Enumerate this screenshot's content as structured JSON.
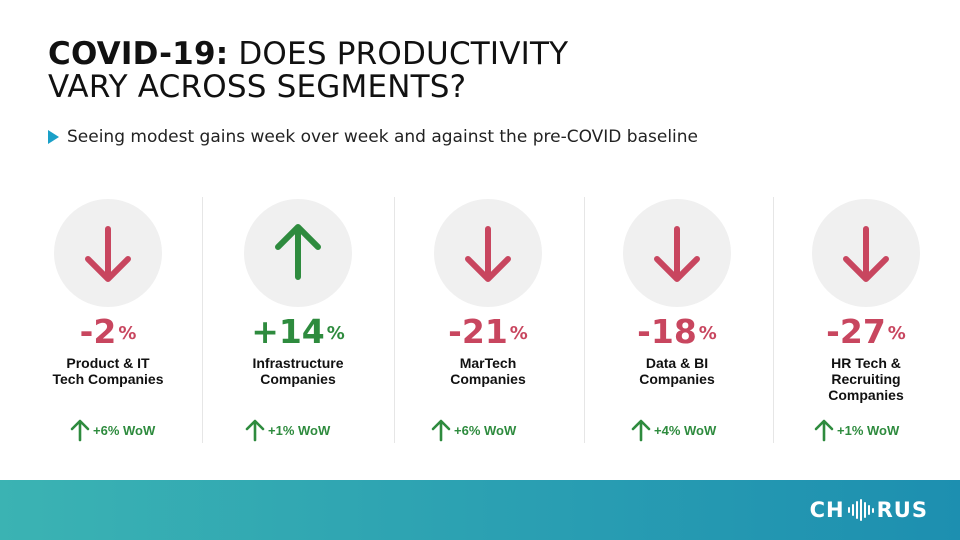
{
  "title": {
    "bold": "COVID-19:",
    "rest_line1": " DOES PRODUCTIVITY",
    "line2": "VARY ACROSS SEGMENTS?"
  },
  "bullet": "Seeing modest gains week over week and against the pre-COVID baseline",
  "colors": {
    "down": "#c8465f",
    "up": "#2e8b3e",
    "bullet": "#1aa0c8",
    "circle": "#f0f0f0"
  },
  "segments": [
    {
      "direction": "down",
      "value": "-2",
      "unit": "%",
      "label_lines": [
        "Product & IT",
        "Tech Companies"
      ],
      "wow": "+6% WoW"
    },
    {
      "direction": "up",
      "value": "+14",
      "unit": "%",
      "label_lines": [
        "Infrastructure",
        "Companies"
      ],
      "wow": "+1% WoW"
    },
    {
      "direction": "down",
      "value": "-21",
      "unit": "%",
      "label_lines": [
        "MarTech",
        "Companies"
      ],
      "wow": "+6% WoW"
    },
    {
      "direction": "down",
      "value": "-18",
      "unit": "%",
      "label_lines": [
        "Data & BI",
        "Companies"
      ],
      "wow": "+4% WoW"
    },
    {
      "direction": "down",
      "value": "-27",
      "unit": "%",
      "label_lines": [
        "HR Tech &",
        "Recruiting",
        "Companies"
      ],
      "wow": "+1% WoW"
    }
  ],
  "footer": {
    "logo_left": "CH",
    "logo_right": "RUS"
  }
}
